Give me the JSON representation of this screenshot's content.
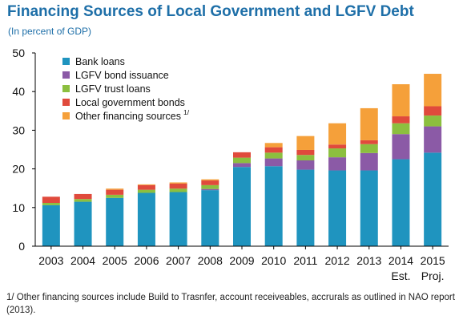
{
  "header": {
    "title": "Financing Sources of Local Government and LGFV Debt",
    "subtitle": "(In percent of GDP)"
  },
  "footnote": "1/ Other financing sources include Build to Trasnfer, account receiveables, accrurals as outlined in NAO report (2013).",
  "colors": {
    "Bank loans": "#1f94bf",
    "LGFV bond issuance": "#8b5aa6",
    "LGFV trust loans": "#8cbf3f",
    "Local government bonds": "#e04a3c",
    "Other financing sources": "#f5a03a"
  },
  "chart_data": {
    "type": "bar",
    "stacked": true,
    "title": "Financing Sources of Local Government and LGFV Debt",
    "subtitle": "(In percent of GDP)",
    "categories": [
      "2003",
      "2004",
      "2005",
      "2006",
      "2007",
      "2008",
      "2009",
      "2010",
      "2011",
      "2012",
      "2013",
      "2014",
      "2015"
    ],
    "category_sublabels": [
      "",
      "",
      "",
      "",
      "",
      "",
      "",
      "",
      "",
      "",
      "",
      "Est.",
      "Proj."
    ],
    "ylim": [
      0,
      50
    ],
    "yticks": [
      0,
      10,
      20,
      30,
      40,
      50
    ],
    "grid": false,
    "legend_position": "top-left",
    "series": [
      {
        "name": "Bank loans",
        "footnote_marker": "",
        "values": [
          10.6,
          11.5,
          12.5,
          13.8,
          14.0,
          14.5,
          20.5,
          20.7,
          19.8,
          19.6,
          19.6,
          22.5,
          24.2
        ]
      },
      {
        "name": "LGFV bond issuance",
        "footnote_marker": "",
        "values": [
          0.0,
          0.0,
          0.0,
          0.0,
          0.0,
          0.3,
          1.0,
          2.0,
          2.4,
          3.4,
          4.5,
          6.5,
          6.8
        ]
      },
      {
        "name": "LGFV trust loans",
        "footnote_marker": "",
        "values": [
          0.6,
          0.7,
          0.8,
          0.8,
          0.9,
          1.0,
          1.4,
          1.5,
          1.4,
          2.3,
          2.3,
          2.8,
          2.8
        ]
      },
      {
        "name": "Local government bonds",
        "footnote_marker": "",
        "values": [
          1.6,
          1.3,
          1.3,
          1.2,
          1.3,
          1.2,
          1.4,
          1.4,
          1.3,
          1.0,
          1.0,
          1.8,
          2.4
        ]
      },
      {
        "name": "Other financing sources",
        "footnote_marker": "1/",
        "values": [
          0.0,
          0.0,
          0.3,
          0.2,
          0.3,
          0.3,
          0.0,
          1.1,
          3.6,
          5.5,
          8.3,
          8.3,
          8.4
        ]
      }
    ]
  }
}
